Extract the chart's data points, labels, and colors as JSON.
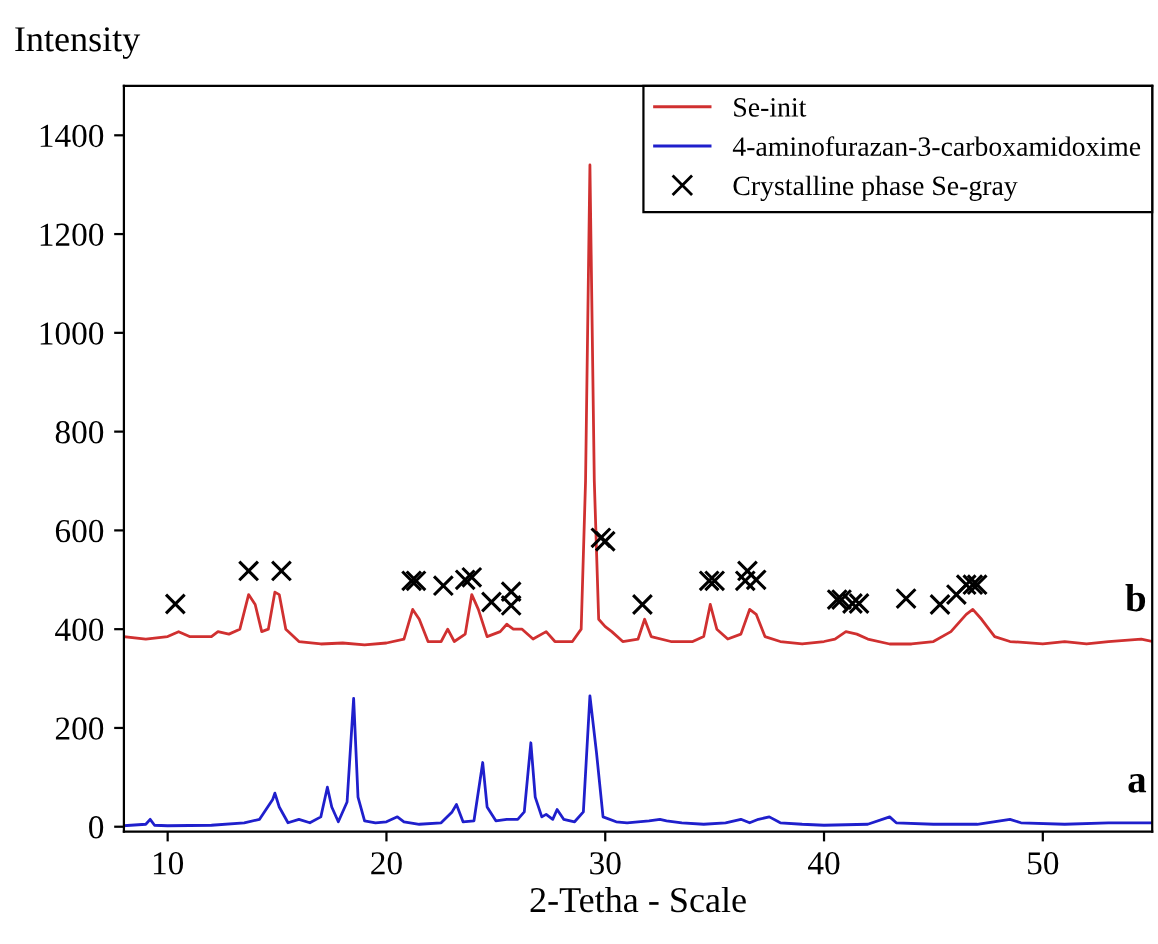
{
  "chart_data": {
    "type": "line",
    "ylabel": "Intensity",
    "xlabel": "2-Tetha - Scale",
    "xlim": [
      8,
      55
    ],
    "ylim": [
      -10,
      1500
    ],
    "xticks": [
      10,
      20,
      30,
      40,
      50
    ],
    "yticks": [
      0,
      200,
      400,
      600,
      800,
      1000,
      1200,
      1400
    ],
    "grid": false,
    "legend": "top right",
    "annotations": [
      "b",
      "a"
    ],
    "series": [
      {
        "name": "Se-init",
        "color": "#d03030",
        "marker": "none",
        "x": [
          8.0,
          9,
          10,
          10.5,
          11,
          12,
          12.3,
          12.8,
          13.3,
          13.7,
          14.0,
          14.3,
          14.6,
          14.9,
          15.1,
          15.4,
          16,
          17,
          18,
          19,
          20,
          20.8,
          21.2,
          21.5,
          21.9,
          22.5,
          22.8,
          23.1,
          23.6,
          23.9,
          24.2,
          24.6,
          25.2,
          25.5,
          25.8,
          26.2,
          26.7,
          27.3,
          27.7,
          28.5,
          28.9,
          29.1,
          29.3,
          29.5,
          29.7,
          30.0,
          30.3,
          30.8,
          31.5,
          31.8,
          32.1,
          33,
          34,
          34.5,
          34.8,
          35.1,
          35.6,
          36.2,
          36.6,
          36.9,
          37.3,
          38,
          39,
          40,
          40.5,
          41,
          41.5,
          42,
          43,
          44,
          45,
          45.8,
          46.5,
          46.8,
          47.2,
          47.8,
          48.5,
          50,
          51,
          52,
          53,
          54.5,
          55
        ],
        "values": [
          385,
          380,
          385,
          395,
          385,
          385,
          395,
          390,
          400,
          470,
          450,
          395,
          400,
          475,
          470,
          400,
          375,
          370,
          372,
          368,
          372,
          380,
          440,
          420,
          375,
          375,
          400,
          375,
          390,
          470,
          440,
          385,
          395,
          410,
          400,
          400,
          380,
          395,
          375,
          375,
          400,
          700,
          1340,
          700,
          420,
          405,
          395,
          375,
          380,
          420,
          385,
          375,
          375,
          385,
          450,
          400,
          380,
          390,
          440,
          430,
          385,
          375,
          370,
          375,
          380,
          395,
          390,
          380,
          370,
          370,
          375,
          395,
          430,
          440,
          420,
          385,
          375,
          370,
          375,
          370,
          375,
          380,
          375
        ]
      },
      {
        "name": "4-aminofurazan-3-carboxamidoxime",
        "color": "#1f1fcc",
        "marker": "none",
        "x": [
          8,
          9,
          9.2,
          9.4,
          10,
          12,
          13.5,
          14.2,
          14.8,
          14.9,
          15.1,
          15.5,
          16,
          16.5,
          17,
          17.3,
          17.5,
          17.8,
          18.2,
          18.5,
          18.7,
          19,
          19.5,
          20,
          20.5,
          20.8,
          21.5,
          22.5,
          23,
          23.2,
          23.5,
          24,
          24.4,
          24.6,
          25,
          25.5,
          26,
          26.3,
          26.6,
          26.8,
          27.1,
          27.3,
          27.6,
          27.8,
          28.1,
          28.6,
          29.0,
          29.3,
          29.6,
          29.9,
          30.5,
          31,
          32,
          32.5,
          32.8,
          33.5,
          34.5,
          35.5,
          36.2,
          36.6,
          37,
          37.5,
          38,
          39,
          40,
          42,
          43,
          43.3,
          45,
          47,
          48.5,
          49,
          51,
          53,
          55
        ],
        "values": [
          2,
          5,
          15,
          3,
          2,
          3,
          8,
          15,
          55,
          68,
          40,
          8,
          15,
          8,
          20,
          80,
          40,
          10,
          50,
          260,
          60,
          12,
          8,
          10,
          20,
          10,
          5,
          8,
          30,
          45,
          10,
          12,
          130,
          40,
          12,
          15,
          15,
          30,
          170,
          60,
          20,
          25,
          15,
          35,
          15,
          10,
          30,
          265,
          150,
          20,
          10,
          8,
          12,
          15,
          12,
          8,
          5,
          8,
          15,
          8,
          15,
          20,
          8,
          5,
          3,
          5,
          20,
          8,
          5,
          5,
          15,
          8,
          5,
          8,
          8
        ]
      },
      {
        "name": "Crystalline phase Se-gray",
        "color": "#000000",
        "type": "scatter",
        "marker": "cross",
        "x": [
          10.35,
          13.7,
          15.2,
          21.15,
          21.35,
          22.6,
          23.6,
          23.9,
          24.8,
          25.7,
          25.7,
          29.8,
          30.0,
          31.7,
          34.75,
          35.0,
          36.5,
          36.4,
          36.9,
          40.6,
          40.8,
          41.3,
          41.6,
          43.75,
          45.3,
          46.05,
          46.5,
          46.8,
          47.0
        ],
        "values": [
          451,
          518,
          518,
          498,
          498,
          488,
          500,
          505,
          455,
          476,
          448,
          585,
          578,
          450,
          498,
          498,
          518,
          498,
          500,
          460,
          460,
          452,
          452,
          462,
          450,
          470,
          490,
          490,
          490
        ]
      }
    ]
  }
}
